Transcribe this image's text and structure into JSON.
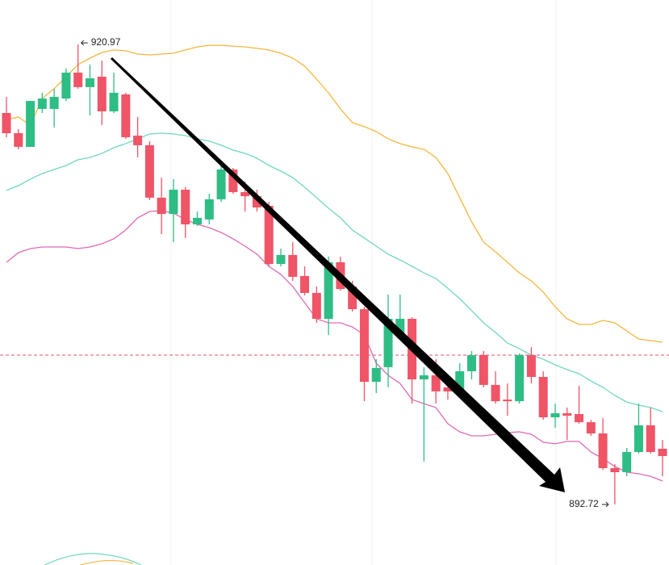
{
  "chart_data": {
    "type": "candlestick",
    "ylim": [
      889.0,
      923.7
    ],
    "colors": {
      "up": "#2ebd85",
      "down": "#ef5467"
    },
    "open": [
      916.76,
      915.52,
      914.68,
      917.01,
      917.01,
      917.65,
      919.24,
      918.35,
      918.99,
      916.86,
      917.9,
      915.37,
      914.78,
      911.56,
      910.56,
      912.05,
      909.92,
      910.22,
      911.46,
      913.29,
      911.9,
      911.65,
      911.06,
      907.49,
      908.04,
      906.75,
      905.71,
      904.12,
      907.59,
      906.1,
      904.71,
      900.25,
      901.15,
      903.13,
      904.12,
      900.4,
      900.65,
      899.91,
      899.66,
      900.9,
      901.89,
      900.06,
      899.16,
      899.06,
      901.89,
      900.55,
      898.07,
      898.32,
      898.27,
      897.77,
      897.08,
      894.95,
      894.7,
      895.94,
      897.58,
      896.14
    ],
    "high": [
      917.75,
      915.77,
      917.5,
      918.0,
      918.25,
      919.49,
      920.97,
      919.73,
      919.98,
      919.24,
      918.0,
      916.51,
      915.03,
      912.79,
      912.7,
      912.2,
      910.71,
      911.8,
      913.54,
      913.39,
      912.55,
      912.05,
      911.31,
      908.43,
      908.83,
      907.34,
      906.1,
      907.94,
      907.94,
      906.45,
      904.86,
      901.64,
      905.61,
      905.61,
      904.22,
      901.15,
      901.64,
      900.65,
      901.39,
      902.14,
      902.14,
      900.9,
      900.15,
      901.99,
      902.38,
      900.9,
      898.91,
      898.67,
      900.01,
      897.92,
      898.02,
      895.2,
      896.19,
      898.91,
      898.67,
      896.68
    ],
    "low": [
      915.27,
      914.53,
      914.68,
      916.76,
      915.87,
      917.5,
      918.25,
      916.61,
      916.02,
      916.76,
      915.17,
      914.03,
      911.41,
      909.32,
      908.83,
      909.08,
      909.82,
      909.92,
      911.31,
      911.8,
      910.71,
      910.71,
      907.34,
      907.34,
      906.45,
      905.56,
      903.87,
      903.13,
      905.85,
      904.57,
      899.06,
      899.56,
      899.91,
      902.88,
      898.91,
      895.35,
      898.91,
      899.16,
      899.41,
      900.4,
      899.91,
      898.91,
      898.17,
      898.91,
      900.15,
      897.92,
      897.43,
      896.68,
      897.68,
      896.93,
      894.85,
      892.72,
      894.45,
      895.84,
      895.84,
      894.45
    ],
    "close": [
      915.52,
      914.68,
      917.5,
      917.65,
      917.75,
      919.24,
      918.35,
      918.89,
      916.86,
      918.0,
      915.27,
      914.78,
      911.56,
      910.56,
      912.05,
      909.92,
      910.32,
      911.46,
      913.29,
      911.9,
      911.65,
      910.96,
      907.49,
      908.04,
      906.7,
      905.71,
      904.12,
      907.59,
      905.95,
      904.71,
      900.25,
      901.1,
      904.12,
      904.12,
      900.4,
      900.65,
      899.66,
      899.66,
      900.9,
      901.89,
      900.06,
      899.06,
      899.06,
      901.89,
      900.55,
      898.07,
      898.32,
      898.17,
      897.77,
      897.08,
      894.95,
      894.7,
      895.94,
      897.58,
      895.94,
      895.69
    ],
    "bands": [
      {
        "color": "#f4b63f",
        "values": [
          916.36,
          916.51,
          916.01,
          917.65,
          918.25,
          918.99,
          919.73,
          920.13,
          920.48,
          920.63,
          920.58,
          920.38,
          920.33,
          920.38,
          920.43,
          920.63,
          920.82,
          920.92,
          920.92,
          920.87,
          920.82,
          920.73,
          920.63,
          920.43,
          920.13,
          919.64,
          918.84,
          918.0,
          917.01,
          916.17,
          915.92,
          915.62,
          915.17,
          914.88,
          914.68,
          914.53,
          914.03,
          913.04,
          911.56,
          910.07,
          908.83,
          908.23,
          907.59,
          906.94,
          906.45,
          905.76,
          904.86,
          904.12,
          903.77,
          903.77,
          904.02,
          903.87,
          903.38,
          902.88,
          902.78,
          902.68
        ]
      },
      {
        "color": "#72d6c2",
        "values": [
          912.0,
          912.3,
          912.7,
          913.04,
          913.29,
          913.54,
          913.89,
          914.03,
          914.28,
          914.63,
          914.88,
          915.17,
          915.47,
          915.52,
          915.47,
          915.37,
          915.17,
          915.03,
          914.78,
          914.48,
          914.28,
          913.98,
          913.54,
          913.19,
          912.79,
          912.2,
          911.56,
          910.91,
          910.32,
          909.57,
          909.08,
          908.58,
          908.09,
          907.74,
          907.34,
          906.94,
          906.6,
          906.0,
          905.36,
          904.62,
          903.87,
          903.28,
          902.63,
          902.29,
          901.89,
          901.64,
          901.29,
          901.0,
          900.75,
          900.3,
          899.91,
          899.41,
          899.01,
          898.82,
          898.67,
          898.42
        ]
      },
      {
        "color": "#e06ab4",
        "values": [
          907.59,
          908.18,
          908.43,
          908.53,
          908.53,
          908.53,
          908.43,
          908.53,
          908.73,
          909.03,
          909.57,
          910.32,
          910.71,
          910.76,
          910.61,
          910.22,
          909.92,
          909.72,
          909.42,
          909.03,
          908.58,
          908.09,
          907.34,
          906.85,
          906.1,
          905.11,
          904.12,
          903.87,
          903.87,
          903.62,
          903.13,
          901.39,
          900.65,
          900.15,
          899.16,
          898.91,
          898.67,
          897.68,
          897.18,
          896.93,
          896.93,
          897.03,
          897.13,
          897.18,
          897.03,
          896.54,
          896.44,
          896.59,
          896.59,
          895.94,
          895.54,
          895.05,
          894.7,
          894.6,
          894.45,
          894.16
        ]
      }
    ],
    "reference_line": 901.89,
    "high_label": 920.97,
    "low_label": 892.72
  }
}
